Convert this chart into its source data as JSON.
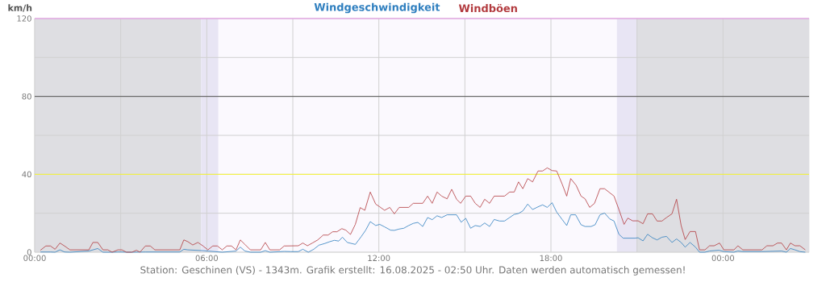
{
  "chart_data": {
    "type": "line",
    "ylabel": "km/h",
    "legend": "top",
    "grid": true,
    "marker": "none",
    "line_style": "solid",
    "xlim": [
      0,
      27
    ],
    "ylim": [
      0,
      120
    ],
    "xticks": [
      {
        "value": 0,
        "label": "00:00"
      },
      {
        "value": 3,
        "label": null
      },
      {
        "value": 6,
        "label": "06:00"
      },
      {
        "value": 9,
        "label": null
      },
      {
        "value": 12,
        "label": "12:00"
      },
      {
        "value": 15,
        "label": null
      },
      {
        "value": 18,
        "label": "18:00"
      },
      {
        "value": 21,
        "label": null
      },
      {
        "value": 24,
        "label": "00:00"
      }
    ],
    "yticks": [
      0,
      {
        "value": 20,
        "label": null
      },
      40,
      {
        "value": 60,
        "label": null
      },
      80,
      {
        "value": 100,
        "label": null
      },
      120
    ],
    "bands": [
      {
        "axis": "x",
        "from": 0,
        "to": 5.8,
        "color": "#dedee2"
      },
      {
        "axis": "x",
        "from": 5.8,
        "to": 6.4,
        "color": "#e8e5f4"
      },
      {
        "axis": "x",
        "from": 20.3,
        "to": 21.0,
        "color": "#e8e5f4"
      },
      {
        "axis": "x",
        "from": 21.0,
        "to": 27,
        "color": "#dedee2"
      }
    ],
    "ref_lines": [
      {
        "axis": "y",
        "value": 40,
        "color": "#ffff00"
      },
      {
        "axis": "y",
        "value": 80,
        "color": "#333333"
      },
      {
        "axis": "y",
        "value": 120,
        "color": "#ee82ee"
      }
    ],
    "series": [
      {
        "name": "Windgeschwindigkeit",
        "color": "#2f7fbf",
        "x": [
          0.2,
          0.39,
          0.55,
          0.71,
          0.88,
          1.04,
          1.23,
          1.89,
          2.2,
          2.38,
          2.7,
          2.9,
          3.04,
          3.2,
          3.39,
          3.86,
          5.06,
          5.2,
          5.34,
          5.86,
          6.54,
          7.02,
          7.17,
          7.33,
          7.52,
          7.88,
          8.04,
          8.2,
          8.7,
          8.93,
          9.19,
          9.35,
          9.54,
          9.73,
          9.91,
          10.1,
          10.29,
          10.45,
          10.6,
          10.73,
          10.9,
          11.18,
          11.39,
          11.54,
          11.7,
          11.89,
          12.03,
          12.2,
          12.41,
          12.54,
          12.71,
          12.87,
          13.04,
          13.2,
          13.36,
          13.53,
          13.7,
          13.86,
          14.03,
          14.19,
          14.38,
          14.71,
          14.87,
          15.03,
          15.2,
          15.36,
          15.53,
          15.69,
          15.86,
          16.02,
          16.21,
          16.38,
          16.56,
          16.72,
          16.87,
          17.02,
          17.19,
          17.36,
          17.55,
          17.71,
          17.87,
          18.04,
          18.2,
          18.39,
          18.55,
          18.69,
          18.86,
          19.05,
          19.19,
          19.4,
          19.54,
          19.71,
          19.87,
          20.05,
          20.2,
          20.37,
          20.52,
          20.93,
          21.04,
          21.21,
          21.37,
          21.54,
          21.7,
          21.87,
          22.03,
          22.22,
          22.38,
          22.54,
          22.68,
          22.85,
          23.04,
          23.18,
          23.37,
          23.53,
          23.86,
          24.03,
          24.38,
          24.52,
          24.69,
          25.36,
          26.04,
          26.21,
          26.35,
          26.51,
          26.68,
          26.87
        ],
        "values": [
          0.1,
          0.1,
          0.1,
          0,
          1.2,
          0.1,
          0,
          0.6,
          1.9,
          0,
          0,
          0.1,
          0.1,
          0,
          0,
          0.1,
          0.1,
          1.5,
          1.2,
          0.8,
          0,
          0.6,
          2.6,
          0.6,
          0,
          0,
          0.8,
          0,
          0.4,
          0.3,
          0.3,
          1.5,
          0,
          1.5,
          3.6,
          4.4,
          5.4,
          6.1,
          5.7,
          7.7,
          5.0,
          4.0,
          8.1,
          11.3,
          15.7,
          13.7,
          14.3,
          13.0,
          11.3,
          11.2,
          11.9,
          12.3,
          13.7,
          14.8,
          15.3,
          13.2,
          17.8,
          16.7,
          18.7,
          17.8,
          19.2,
          19.2,
          15.4,
          17.4,
          12.3,
          13.7,
          13.2,
          15.0,
          13.2,
          16.8,
          16.0,
          16.0,
          17.8,
          19.4,
          19.9,
          21.2,
          24.7,
          21.9,
          23.3,
          24.3,
          23.0,
          25.4,
          20.6,
          16.8,
          13.7,
          19.2,
          19.2,
          14.1,
          13.2,
          13.2,
          14.1,
          19.2,
          20.1,
          17.1,
          16.0,
          9.2,
          7.2,
          7.2,
          7.4,
          5.8,
          9.2,
          7.4,
          6.3,
          7.7,
          8.1,
          5.0,
          6.8,
          5.0,
          2.6,
          5.0,
          2.6,
          0,
          0,
          0.6,
          1.0,
          0.3,
          0,
          0.6,
          0.3,
          0.3,
          0.6,
          0,
          1.9,
          1.2,
          0.3,
          0
        ]
      },
      {
        "name": "Windböen",
        "color": "#b23a3e",
        "x": [
          0.2,
          0.39,
          0.55,
          0.71,
          0.88,
          1.04,
          1.23,
          1.89,
          2.03,
          2.2,
          2.38,
          2.55,
          2.7,
          2.9,
          3.04,
          3.2,
          3.39,
          3.55,
          3.67,
          3.86,
          4.03,
          4.19,
          5.06,
          5.2,
          5.34,
          5.51,
          5.69,
          5.86,
          6.04,
          6.21,
          6.37,
          6.54,
          6.7,
          6.86,
          7.02,
          7.17,
          7.33,
          7.52,
          7.88,
          8.04,
          8.2,
          8.54,
          8.7,
          9.19,
          9.35,
          9.51,
          9.68,
          9.87,
          10.06,
          10.23,
          10.39,
          10.54,
          10.71,
          10.85,
          11.01,
          11.18,
          11.35,
          11.51,
          11.7,
          11.89,
          12.03,
          12.2,
          12.38,
          12.54,
          12.71,
          13.04,
          13.2,
          13.53,
          13.7,
          13.86,
          14.03,
          14.19,
          14.38,
          14.54,
          14.71,
          14.85,
          15.03,
          15.2,
          15.36,
          15.53,
          15.69,
          15.86,
          16.02,
          16.38,
          16.56,
          16.72,
          16.87,
          17.02,
          17.19,
          17.36,
          17.55,
          17.71,
          17.87,
          18.04,
          18.2,
          18.39,
          18.55,
          18.69,
          18.88,
          19.05,
          19.19,
          19.35,
          19.52,
          19.71,
          19.87,
          20.2,
          20.37,
          20.55,
          20.68,
          20.85,
          21.04,
          21.21,
          21.37,
          21.54,
          21.7,
          21.87,
          22.03,
          22.22,
          22.38,
          22.54,
          22.68,
          22.85,
          23.04,
          23.18,
          23.37,
          23.53,
          23.69,
          23.88,
          24.03,
          24.38,
          24.52,
          24.69,
          25.36,
          25.53,
          25.74,
          25.9,
          26.04,
          26.21,
          26.35,
          26.51,
          26.68,
          26.87
        ],
        "values": [
          1.0,
          3.2,
          3.2,
          1.5,
          4.7,
          3.2,
          1.2,
          1.2,
          5.0,
          5.0,
          1.2,
          1.2,
          0,
          1.2,
          1.2,
          0,
          0,
          1.0,
          0,
          3.2,
          3.2,
          1.2,
          1.2,
          6.3,
          5.4,
          3.7,
          5.0,
          3.3,
          1.2,
          3.2,
          3.2,
          1.2,
          3.2,
          3.2,
          1.2,
          6.3,
          4.0,
          1.2,
          1.2,
          5.0,
          1.2,
          1.2,
          3.2,
          3.3,
          4.7,
          3.3,
          4.7,
          6.3,
          8.8,
          8.8,
          10.5,
          10.5,
          12.1,
          11.3,
          9.1,
          14.3,
          22.9,
          21.5,
          30.9,
          24.7,
          23.3,
          21.5,
          23.0,
          19.7,
          23.0,
          23.0,
          25.1,
          25.1,
          28.8,
          25.1,
          30.9,
          28.8,
          27.4,
          32.3,
          27.2,
          25.1,
          28.8,
          28.8,
          25.1,
          23.0,
          27.2,
          25.1,
          28.8,
          28.8,
          30.9,
          30.9,
          36.1,
          32.6,
          37.8,
          36.1,
          41.7,
          41.7,
          43.3,
          41.9,
          41.7,
          35.0,
          28.8,
          37.8,
          34.3,
          28.8,
          27.4,
          23.0,
          25.1,
          32.6,
          32.6,
          28.8,
          21.9,
          14.3,
          17.5,
          16.1,
          16.1,
          14.6,
          19.7,
          19.7,
          16.0,
          16.0,
          17.8,
          19.7,
          27.2,
          13.7,
          6.5,
          10.6,
          10.6,
          1.2,
          1.2,
          3.3,
          3.3,
          4.7,
          1.2,
          1.2,
          3.3,
          1.2,
          1.2,
          3.3,
          3.3,
          4.7,
          4.7,
          1.2,
          4.7,
          3.3,
          3.3,
          1.2
        ]
      }
    ],
    "annotations": [
      "Station: Geschinen (VS) - 1343m. Grafik erstellt: 16.08.2025 - 02:50 Uhr. Daten werden automatisch gemessen!"
    ]
  }
}
